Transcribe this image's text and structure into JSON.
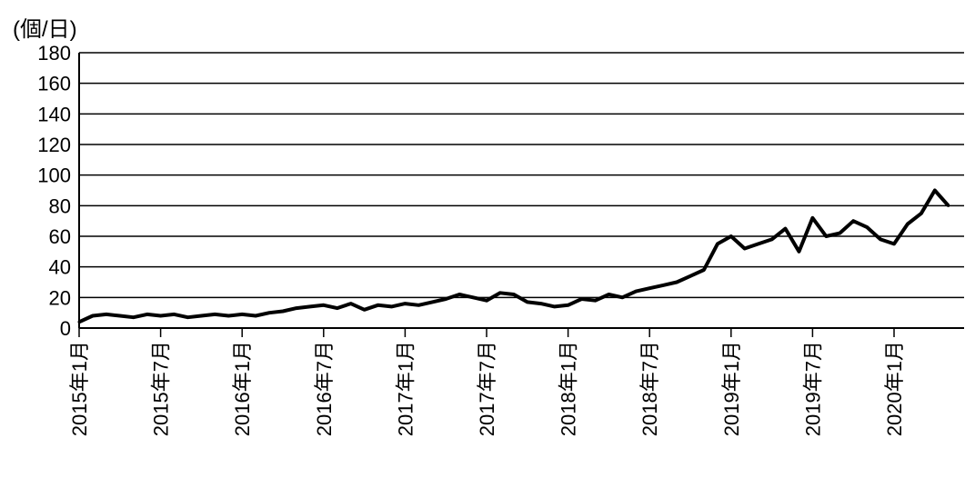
{
  "chart_data": {
    "type": "line",
    "unit_label": "(個/日)",
    "y_ticks": [
      "0",
      "20",
      "40",
      "60",
      "80",
      "100",
      "120",
      "140",
      "160",
      "180"
    ],
    "ylim": [
      0,
      180
    ],
    "grid": true,
    "x_tick_labels": [
      "2015年1月",
      "2015年7月",
      "2016年1月",
      "2016年7月",
      "2017年1月",
      "2017年7月",
      "2018年1月",
      "2018年7月",
      "2019年1月",
      "2019年7月",
      "2020年1月"
    ],
    "series": [
      {
        "color": "#000000",
        "x": [
          "2015-01",
          "2015-02",
          "2015-03",
          "2015-04",
          "2015-05",
          "2015-06",
          "2015-07",
          "2015-08",
          "2015-09",
          "2015-10",
          "2015-11",
          "2015-12",
          "2016-01",
          "2016-02",
          "2016-03",
          "2016-04",
          "2016-05",
          "2016-06",
          "2016-07",
          "2016-08",
          "2016-09",
          "2016-10",
          "2016-11",
          "2016-12",
          "2017-01",
          "2017-02",
          "2017-03",
          "2017-04",
          "2017-05",
          "2017-06",
          "2017-07",
          "2017-08",
          "2017-09",
          "2017-10",
          "2017-11",
          "2017-12",
          "2018-01",
          "2018-02",
          "2018-03",
          "2018-04",
          "2018-05",
          "2018-06",
          "2018-07",
          "2018-08",
          "2018-09",
          "2018-10",
          "2018-11",
          "2018-12",
          "2019-01",
          "2019-02",
          "2019-03",
          "2019-04",
          "2019-05",
          "2019-06",
          "2019-07",
          "2019-08",
          "2019-09",
          "2019-10",
          "2019-11",
          "2019-12",
          "2020-01",
          "2020-02",
          "2020-03",
          "2020-04",
          "2020-05"
        ],
        "values": [
          4,
          8,
          9,
          8,
          7,
          9,
          8,
          9,
          7,
          8,
          9,
          8,
          9,
          8,
          10,
          11,
          13,
          14,
          15,
          13,
          16,
          12,
          15,
          14,
          16,
          15,
          17,
          19,
          22,
          20,
          18,
          23,
          22,
          17,
          16,
          14,
          15,
          19,
          18,
          22,
          20,
          24,
          26,
          28,
          30,
          34,
          38,
          55,
          60,
          52,
          55,
          58,
          65,
          50,
          72,
          60,
          62,
          70,
          66,
          58,
          55,
          68,
          75,
          90,
          80
        ]
      }
    ]
  }
}
